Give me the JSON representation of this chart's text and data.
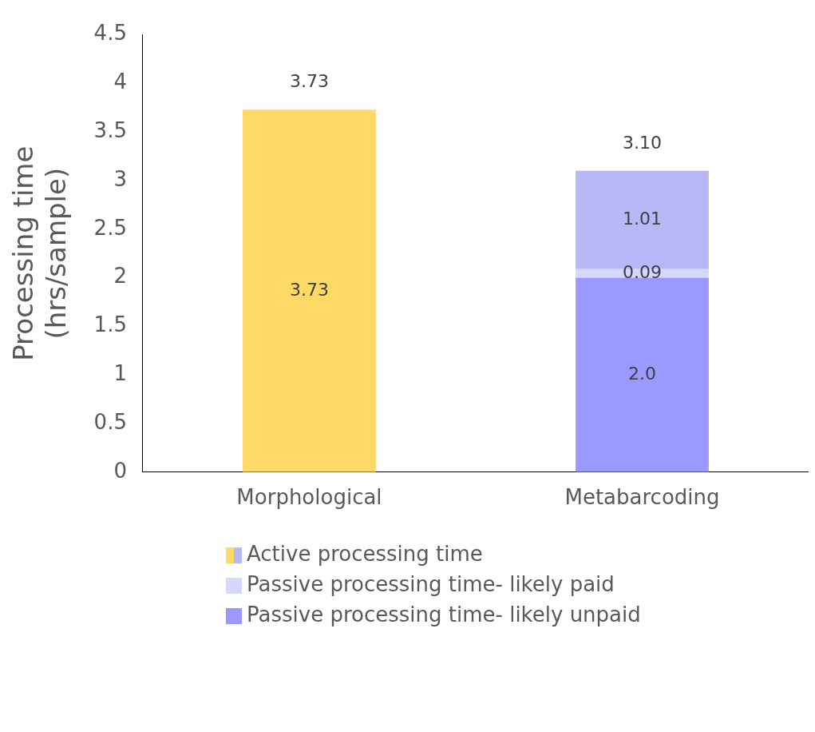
{
  "chart_data": {
    "type": "bar",
    "stacked": true,
    "ylabel": "Processing time\n(hrs/sample)",
    "categories": [
      "Morphological",
      "Metabarcoding"
    ],
    "series": [
      {
        "name": "Passive processing time- likely unpaid",
        "color": "#9999ff",
        "values": [
          null,
          2.0
        ],
        "value_labels": [
          null,
          "2.0"
        ]
      },
      {
        "name": "Passive processing time- likely paid",
        "color": "#d6d6ff",
        "values": [
          null,
          0.09
        ],
        "value_labels": [
          null,
          "0.09"
        ]
      },
      {
        "name": "Active processing time",
        "colors": [
          "#ffd966",
          "#b8b8f8"
        ],
        "values": [
          3.73,
          1.01
        ],
        "value_labels": [
          "3.73",
          "1.01"
        ]
      }
    ],
    "totals": [
      "3.73",
      "3.10"
    ],
    "ylim": [
      0,
      4.5
    ],
    "yticks": [
      0,
      0.5,
      1,
      1.5,
      2,
      2.5,
      3,
      3.5,
      4,
      4.5
    ],
    "grid": false,
    "legend": "bottom"
  }
}
